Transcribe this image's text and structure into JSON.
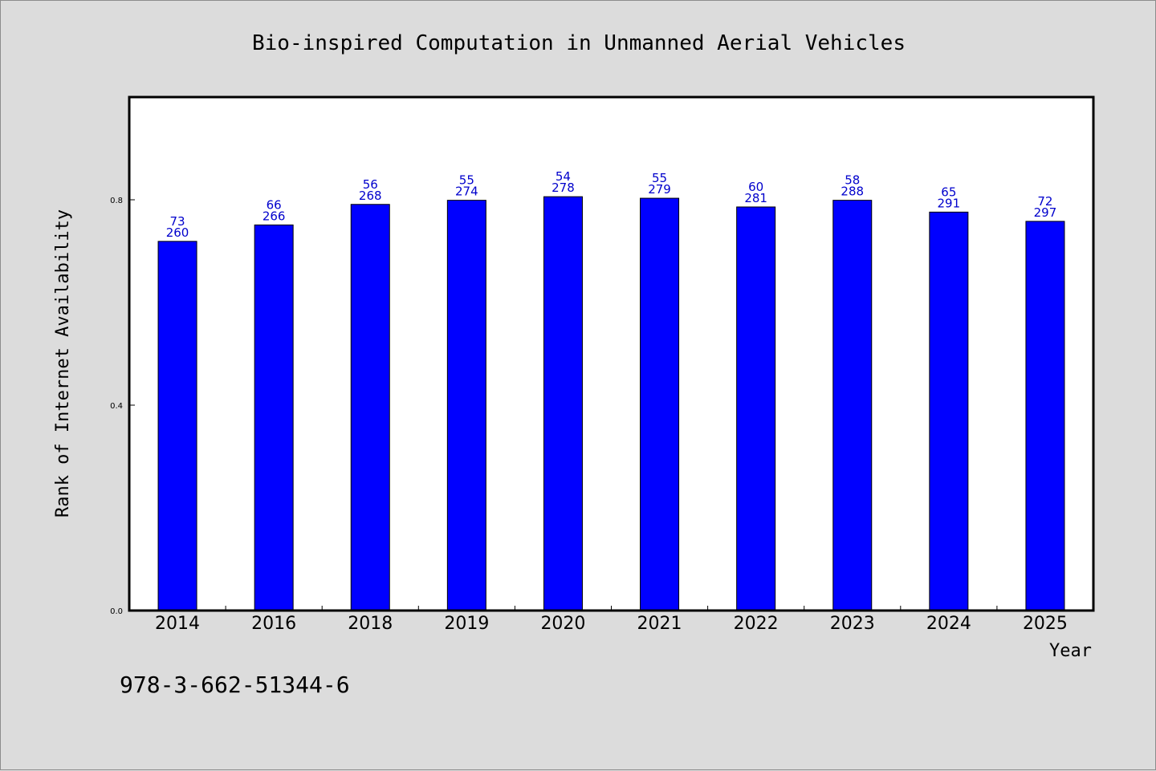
{
  "colors": {
    "background": "#dcdcdc",
    "plot_background": "#ffffff",
    "bar": "#0000ff",
    "data_label": "#0000cc"
  },
  "footer_text": "978-3-662-51344-6",
  "chart_data": {
    "type": "bar",
    "title": "Bio-inspired Computation in Unmanned Aerial Vehicles",
    "xlabel": "Year",
    "ylabel": "Rank of Internet Availability",
    "ylim": [
      0,
      1.0
    ],
    "yticks": [
      "0.0",
      "0.4",
      "0.8"
    ],
    "ytick_values": [
      0.0,
      0.4,
      0.8
    ],
    "grid": false,
    "categories": [
      "2014",
      "2016",
      "2018",
      "2019",
      "2020",
      "2021",
      "2022",
      "2023",
      "2024",
      "2025"
    ],
    "values": [
      0.719,
      0.751,
      0.791,
      0.799,
      0.806,
      0.803,
      0.786,
      0.799,
      0.776,
      0.758
    ],
    "label_top": [
      "73",
      "66",
      "56",
      "55",
      "54",
      "55",
      "60",
      "58",
      "65",
      "72"
    ],
    "label_bottom": [
      "260",
      "266",
      "268",
      "274",
      "278",
      "279",
      "281",
      "288",
      "291",
      "297"
    ]
  }
}
